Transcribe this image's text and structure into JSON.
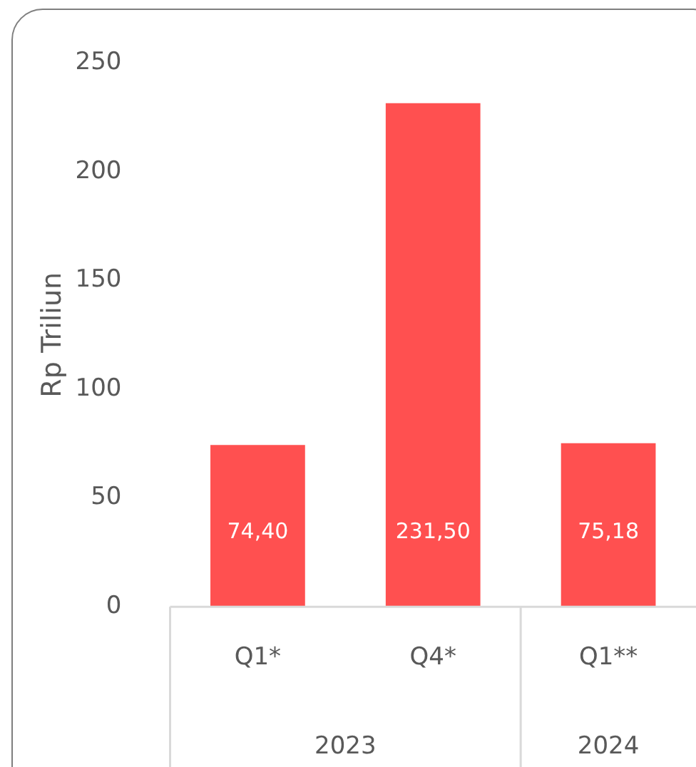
{
  "chart_data": {
    "type": "bar",
    "ylabel": "Rp Triliun",
    "categories": [
      "Q1*",
      "Q4*",
      "Q1**"
    ],
    "values": [
      74.4,
      231.5,
      75.18
    ],
    "color": "#ff5050",
    "value_labels": [
      "74,40",
      "231,50",
      "75,18"
    ],
    "ylim": [
      0,
      250
    ],
    "yticks": [
      0,
      50,
      100,
      150,
      200,
      250
    ],
    "grid": false,
    "annotations": [
      "2023",
      "2024"
    ]
  }
}
